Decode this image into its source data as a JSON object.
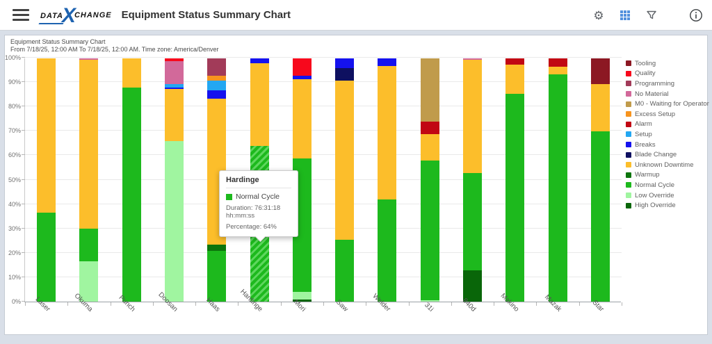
{
  "header": {
    "logo_part1": "DATA",
    "logo_x": "X",
    "logo_part2": "CHANGE",
    "title": "Equipment Status Summary Chart"
  },
  "subtitle": {
    "line1": "Equipment Status Summary Chart",
    "line2": "From 7/18/25, 12:00 AM To 7/18/25, 12:00 AM. Time zone: America/Denver"
  },
  "toolbar_icons": [
    "settings",
    "table-view",
    "filter",
    "info"
  ],
  "tooltip": {
    "title": "Hardinge",
    "series": "Normal Cycle",
    "duration": "Duration: 76:31:18 hh:mm:ss",
    "percentage": "Percentage: 64%",
    "swatch_color": "#1db91d"
  },
  "chart_data": {
    "type": "bar",
    "stacked": true,
    "title": "Equipment Status Summary Chart",
    "ylim": [
      0,
      100
    ],
    "y_tick_step": 10,
    "y_unit": "%",
    "grid": true,
    "legend_position": "right",
    "categories": [
      "Laser",
      "Okuma",
      "Punch",
      "Doosan",
      "Haas",
      "Hardinge",
      "Mori",
      "Saw",
      "Welder",
      "31i",
      "840d",
      "Makino",
      "Mazak",
      "Star"
    ],
    "legend": [
      {
        "name": "Tooling",
        "color": "#8C1823"
      },
      {
        "name": "Quality",
        "color": "#F7081C"
      },
      {
        "name": "Programming",
        "color": "#A23B59"
      },
      {
        "name": "No Material",
        "color": "#D2699A"
      },
      {
        "name": "M0 - Waiting for Operator",
        "color": "#C09B4B"
      },
      {
        "name": "Excess Setup",
        "color": "#F7941E"
      },
      {
        "name": "Alarm",
        "color": "#C10713"
      },
      {
        "name": "Setup",
        "color": "#23A7F2"
      },
      {
        "name": "Breaks",
        "color": "#1512EE"
      },
      {
        "name": "Blade Change",
        "color": "#0E1060"
      },
      {
        "name": "Unknown Downtime",
        "color": "#FCBE2B"
      },
      {
        "name": "Warmup",
        "color": "#0C750C"
      },
      {
        "name": "Normal Cycle",
        "color": "#1DB91D"
      },
      {
        "name": "Low Override",
        "color": "#A0F5A0"
      },
      {
        "name": "High Override",
        "color": "#096609"
      }
    ],
    "machines": [
      {
        "name": "Laser",
        "segments": [
          {
            "category": "Normal Cycle",
            "pct": 36.5
          },
          {
            "category": "Unknown Downtime",
            "pct": 63.5
          }
        ]
      },
      {
        "name": "Okuma",
        "segments": [
          {
            "category": "Low Override",
            "pct": 16.5
          },
          {
            "category": "Normal Cycle",
            "pct": 13.5
          },
          {
            "category": "Unknown Downtime",
            "pct": 69.5
          },
          {
            "category": "No Material",
            "pct": 0.5
          }
        ]
      },
      {
        "name": "Punch",
        "segments": [
          {
            "category": "Normal Cycle",
            "pct": 88
          },
          {
            "category": "Unknown Downtime",
            "pct": 12
          }
        ]
      },
      {
        "name": "Doosan",
        "segments": [
          {
            "category": "Low Override",
            "pct": 66
          },
          {
            "category": "Unknown Downtime",
            "pct": 21.5
          },
          {
            "category": "Breaks",
            "pct": 0.5
          },
          {
            "category": "Setup",
            "pct": 1.5
          },
          {
            "category": "No Material",
            "pct": 9.5
          },
          {
            "category": "Quality",
            "pct": 1
          }
        ]
      },
      {
        "name": "Haas",
        "segments": [
          {
            "category": "Normal Cycle",
            "pct": 21
          },
          {
            "category": "Warmup",
            "pct": 2.5
          },
          {
            "category": "Unknown Downtime",
            "pct": 60
          },
          {
            "category": "Breaks",
            "pct": 3.5
          },
          {
            "category": "Setup",
            "pct": 4
          },
          {
            "category": "Excess Setup",
            "pct": 2
          },
          {
            "category": "Programming",
            "pct": 7
          }
        ]
      },
      {
        "name": "Hardinge",
        "segments": [
          {
            "category": "Normal Cycle",
            "pct": 64
          },
          {
            "category": "Unknown Downtime",
            "pct": 34
          },
          {
            "category": "Breaks",
            "pct": 2
          }
        ]
      },
      {
        "name": "Mori",
        "segments": [
          {
            "category": "High Override",
            "pct": 1
          },
          {
            "category": "Low Override",
            "pct": 3
          },
          {
            "category": "Normal Cycle",
            "pct": 55
          },
          {
            "category": "Unknown Downtime",
            "pct": 32.5
          },
          {
            "category": "Breaks",
            "pct": 1.5
          },
          {
            "category": "Quality",
            "pct": 7
          }
        ]
      },
      {
        "name": "Saw",
        "segments": [
          {
            "category": "Normal Cycle",
            "pct": 25.5
          },
          {
            "category": "Unknown Downtime",
            "pct": 65.5
          },
          {
            "category": "Blade Change",
            "pct": 5
          },
          {
            "category": "Breaks",
            "pct": 4
          }
        ]
      },
      {
        "name": "Welder",
        "segments": [
          {
            "category": "Normal Cycle",
            "pct": 42
          },
          {
            "category": "Unknown Downtime",
            "pct": 55
          },
          {
            "category": "Breaks",
            "pct": 3
          }
        ]
      },
      {
        "name": "31i",
        "segments": [
          {
            "category": "Low Override",
            "pct": 0.5
          },
          {
            "category": "Normal Cycle",
            "pct": 57.5
          },
          {
            "category": "Unknown Downtime",
            "pct": 11
          },
          {
            "category": "Alarm",
            "pct": 5
          },
          {
            "category": "M0 - Waiting for Operator",
            "pct": 26
          }
        ]
      },
      {
        "name": "840d",
        "segments": [
          {
            "category": "High Override",
            "pct": 13
          },
          {
            "category": "Normal Cycle",
            "pct": 40
          },
          {
            "category": "Unknown Downtime",
            "pct": 46.5
          },
          {
            "category": "No Material",
            "pct": 0.5
          }
        ]
      },
      {
        "name": "Makino",
        "segments": [
          {
            "category": "Normal Cycle",
            "pct": 85.5
          },
          {
            "category": "Unknown Downtime",
            "pct": 12
          },
          {
            "category": "Alarm",
            "pct": 2.5
          }
        ]
      },
      {
        "name": "Mazak",
        "segments": [
          {
            "category": "Normal Cycle",
            "pct": 93.5
          },
          {
            "category": "Unknown Downtime",
            "pct": 3
          },
          {
            "category": "Alarm",
            "pct": 3.5
          }
        ]
      },
      {
        "name": "Star",
        "segments": [
          {
            "category": "Normal Cycle",
            "pct": 70
          },
          {
            "category": "Unknown Downtime",
            "pct": 19.5
          },
          {
            "category": "Tooling",
            "pct": 10.5
          }
        ]
      }
    ],
    "highlight": {
      "machine": "Hardinge",
      "segment": "Normal Cycle"
    },
    "highlight_stripe_color": "#5ed65e"
  }
}
